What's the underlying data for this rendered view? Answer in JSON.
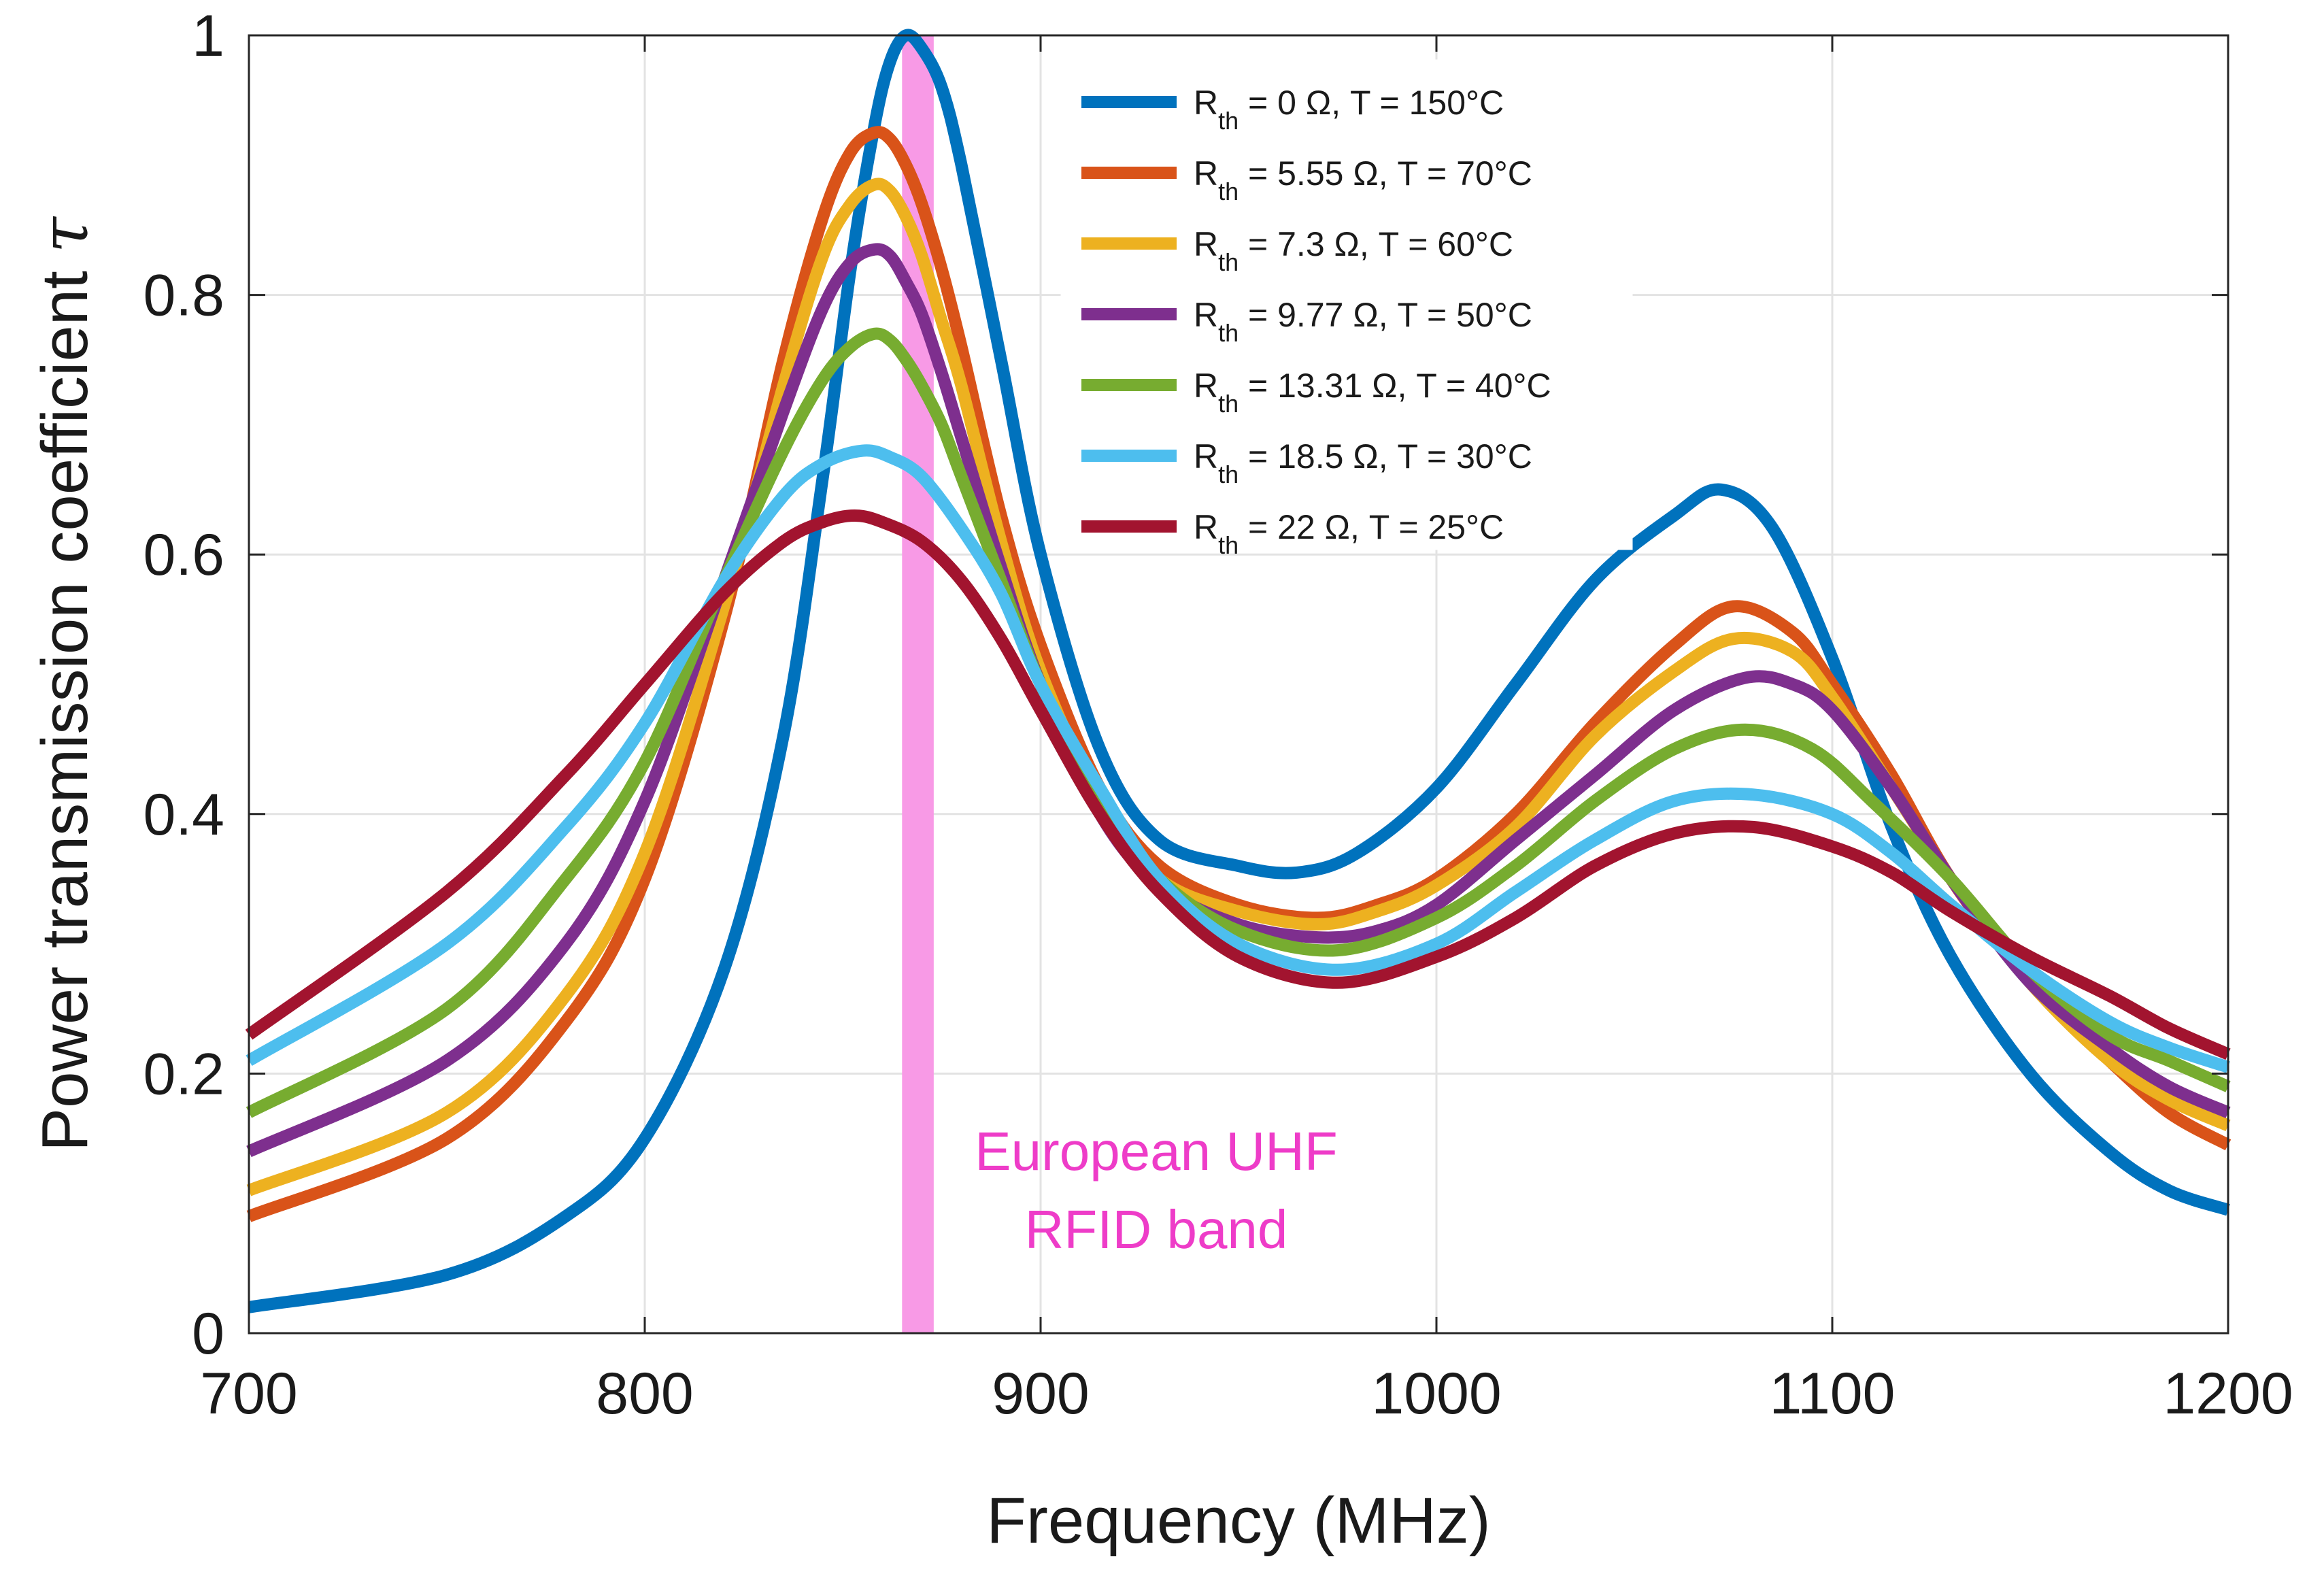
{
  "chart_data": {
    "type": "line",
    "title": "",
    "xlabel": "Frequency (MHz)",
    "ylabel": "Power transmission coefficient",
    "ylabel_symbol": "τ",
    "xlim": [
      700,
      1200
    ],
    "ylim": [
      0,
      1
    ],
    "xticks": [
      700,
      800,
      900,
      1000,
      1100,
      1200
    ],
    "yticks": [
      0,
      0.2,
      0.4,
      0.6,
      0.8,
      1
    ],
    "ytick_labels": [
      "0",
      "0.2",
      "0.4",
      "0.6",
      "0.8",
      "1"
    ],
    "grid": true,
    "legend_position": "top-right",
    "band": {
      "x_start": 865,
      "x_end": 873,
      "color": "#f89ae6",
      "label_lines": [
        "European UHF",
        "RFID band"
      ],
      "label_color": "#ee3cc8"
    },
    "series": [
      {
        "name": "0 Ω, T = 150°C",
        "legend_sub": "th",
        "legend_prefix": "R",
        "color": "#0072bd",
        "x": [
          700,
          750,
          780,
          800,
          820,
          835,
          845,
          852,
          858,
          862,
          866,
          870,
          875,
          880,
          890,
          900,
          915,
          930,
          950,
          965,
          980,
          1000,
          1020,
          1040,
          1060,
          1072,
          1085,
          1100,
          1115,
          1130,
          1150,
          1170,
          1185,
          1200
        ],
        "y": [
          0.02,
          0.045,
          0.09,
          0.15,
          0.28,
          0.46,
          0.66,
          0.82,
          0.93,
          0.98,
          1.0,
          0.99,
          0.96,
          0.9,
          0.75,
          0.6,
          0.45,
          0.38,
          0.36,
          0.355,
          0.37,
          0.42,
          0.5,
          0.58,
          0.63,
          0.65,
          0.62,
          0.52,
          0.39,
          0.29,
          0.2,
          0.14,
          0.11,
          0.095
        ]
      },
      {
        "name": "5.55 Ω, T = 70°C",
        "legend_sub": "th",
        "legend_prefix": "R",
        "color": "#d95319",
        "x": [
          700,
          750,
          780,
          800,
          820,
          835,
          845,
          852,
          858,
          862,
          866,
          870,
          875,
          880,
          890,
          900,
          915,
          930,
          950,
          970,
          985,
          1000,
          1020,
          1040,
          1060,
          1075,
          1090,
          1100,
          1115,
          1130,
          1150,
          1170,
          1185,
          1200
        ],
        "y": [
          0.09,
          0.15,
          0.24,
          0.35,
          0.55,
          0.75,
          0.86,
          0.91,
          0.925,
          0.92,
          0.9,
          0.87,
          0.82,
          0.76,
          0.63,
          0.53,
          0.42,
          0.36,
          0.33,
          0.32,
          0.33,
          0.35,
          0.4,
          0.47,
          0.53,
          0.56,
          0.54,
          0.5,
          0.43,
          0.35,
          0.27,
          0.21,
          0.17,
          0.145
        ]
      },
      {
        "name": "7.3 Ω, T = 60°C",
        "legend_sub": "th",
        "legend_prefix": "R",
        "color": "#edb120",
        "x": [
          700,
          750,
          780,
          800,
          820,
          835,
          845,
          852,
          858,
          862,
          866,
          870,
          875,
          880,
          890,
          900,
          915,
          930,
          950,
          970,
          985,
          1000,
          1020,
          1040,
          1060,
          1075,
          1090,
          1100,
          1115,
          1130,
          1150,
          1170,
          1185,
          1200
        ],
        "y": [
          0.11,
          0.17,
          0.26,
          0.37,
          0.56,
          0.73,
          0.83,
          0.87,
          0.885,
          0.88,
          0.86,
          0.83,
          0.78,
          0.73,
          0.61,
          0.51,
          0.41,
          0.35,
          0.325,
          0.315,
          0.325,
          0.345,
          0.39,
          0.46,
          0.51,
          0.535,
          0.525,
          0.49,
          0.42,
          0.35,
          0.27,
          0.21,
          0.18,
          0.16
        ]
      },
      {
        "name": "9.77 Ω, T = 50°C",
        "legend_sub": "th",
        "legend_prefix": "R",
        "color": "#7e2f8e",
        "x": [
          700,
          750,
          780,
          800,
          820,
          835,
          845,
          852,
          858,
          862,
          866,
          870,
          875,
          880,
          890,
          900,
          915,
          930,
          950,
          970,
          985,
          1000,
          1020,
          1040,
          1060,
          1078,
          1090,
          1100,
          1115,
          1130,
          1150,
          1170,
          1185,
          1200
        ],
        "y": [
          0.14,
          0.21,
          0.3,
          0.41,
          0.58,
          0.71,
          0.79,
          0.825,
          0.835,
          0.83,
          0.81,
          0.785,
          0.74,
          0.69,
          0.59,
          0.5,
          0.4,
          0.345,
          0.315,
          0.305,
          0.31,
          0.33,
          0.38,
          0.43,
          0.48,
          0.505,
          0.5,
          0.48,
          0.42,
          0.35,
          0.27,
          0.22,
          0.19,
          0.17
        ]
      },
      {
        "name": "13.31 Ω, T = 40°C",
        "legend_sub": "th",
        "legend_prefix": "R",
        "color": "#77ac30",
        "x": [
          700,
          750,
          780,
          800,
          820,
          835,
          845,
          852,
          858,
          862,
          866,
          870,
          875,
          880,
          890,
          900,
          915,
          930,
          950,
          975,
          1000,
          1020,
          1040,
          1060,
          1078,
          1095,
          1110,
          1130,
          1150,
          1170,
          1185,
          1200
        ],
        "y": [
          0.17,
          0.25,
          0.35,
          0.44,
          0.58,
          0.68,
          0.735,
          0.76,
          0.77,
          0.765,
          0.75,
          0.73,
          0.7,
          0.66,
          0.58,
          0.5,
          0.41,
          0.35,
          0.31,
          0.295,
          0.32,
          0.36,
          0.41,
          0.45,
          0.465,
          0.45,
          0.41,
          0.35,
          0.28,
          0.23,
          0.21,
          0.19
        ]
      },
      {
        "name": "18.5 Ω, T = 30°C",
        "legend_sub": "th",
        "legend_prefix": "R",
        "color": "#4dbeee",
        "x": [
          700,
          750,
          780,
          800,
          820,
          835,
          845,
          855,
          862,
          870,
          880,
          890,
          900,
          915,
          930,
          950,
          975,
          1000,
          1020,
          1040,
          1060,
          1080,
          1100,
          1115,
          1130,
          1150,
          1170,
          1185,
          1200
        ],
        "y": [
          0.21,
          0.3,
          0.39,
          0.47,
          0.58,
          0.645,
          0.67,
          0.68,
          0.675,
          0.66,
          0.62,
          0.57,
          0.5,
          0.42,
          0.35,
          0.3,
          0.28,
          0.3,
          0.34,
          0.38,
          0.41,
          0.415,
          0.4,
          0.37,
          0.33,
          0.28,
          0.24,
          0.22,
          0.205
        ]
      },
      {
        "name": "22 Ω, T = 25°C",
        "legend_sub": "th",
        "legend_prefix": "R",
        "color": "#a2142f",
        "x": [
          700,
          750,
          780,
          800,
          820,
          835,
          845,
          853,
          860,
          870,
          880,
          890,
          900,
          915,
          930,
          950,
          975,
          1000,
          1020,
          1040,
          1060,
          1080,
          1100,
          1115,
          1130,
          1150,
          1170,
          1185,
          1200
        ],
        "y": [
          0.23,
          0.34,
          0.43,
          0.5,
          0.57,
          0.61,
          0.625,
          0.63,
          0.625,
          0.61,
          0.58,
          0.535,
          0.48,
          0.4,
          0.34,
          0.29,
          0.27,
          0.29,
          0.32,
          0.36,
          0.385,
          0.39,
          0.375,
          0.355,
          0.325,
          0.29,
          0.26,
          0.235,
          0.215
        ]
      }
    ]
  }
}
